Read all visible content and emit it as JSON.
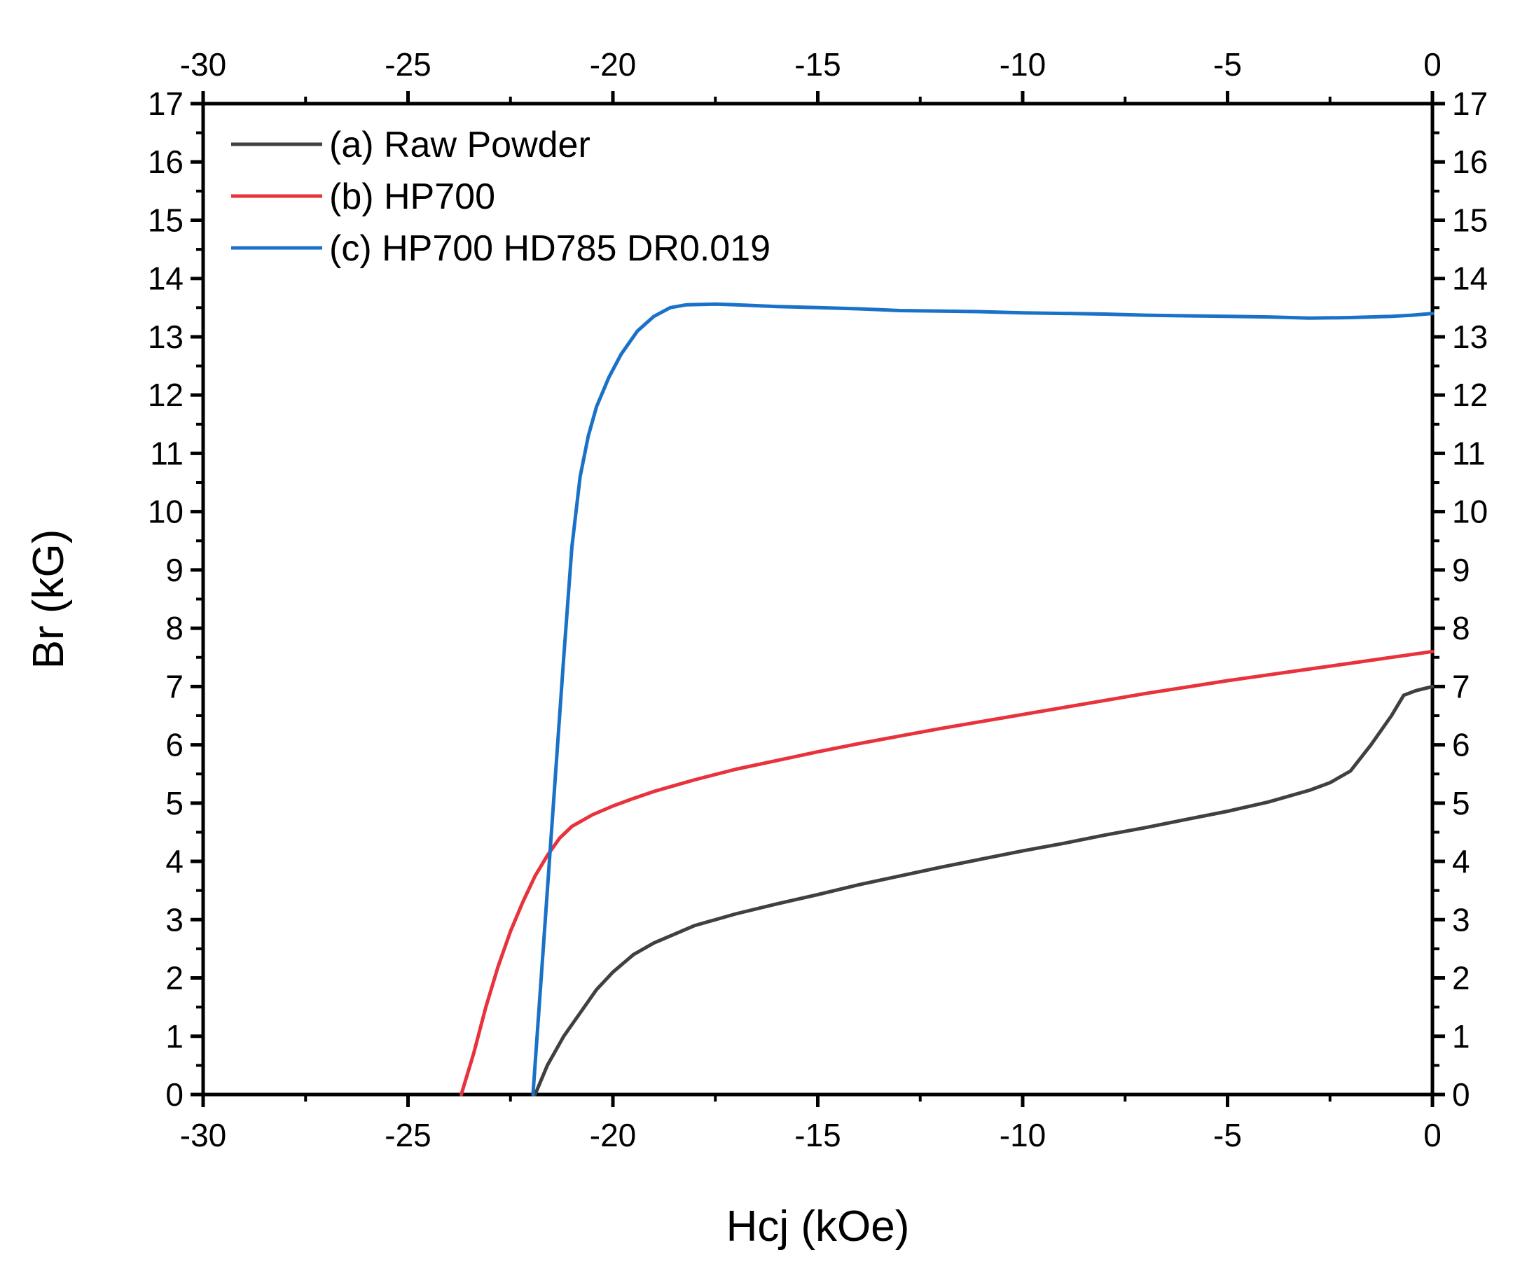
{
  "chart_data": {
    "type": "line",
    "title": "",
    "xlabel": "Hcj (kOe)",
    "ylabel": "Br (kG)",
    "xlim": [
      -30,
      0
    ],
    "ylim": [
      0,
      17
    ],
    "x_ticks": [
      -30,
      -25,
      -20,
      -15,
      -10,
      -5,
      0
    ],
    "y_ticks": [
      0,
      1,
      2,
      3,
      4,
      5,
      6,
      7,
      8,
      9,
      10,
      11,
      12,
      13,
      14,
      15,
      16,
      17
    ],
    "mirror_axes": true,
    "legend_position": "top-left",
    "series": [
      {
        "name": "(a) Raw Powder",
        "color": "#404040",
        "x": [
          -21.9,
          -21.6,
          -21.2,
          -20.8,
          -20.4,
          -20.0,
          -19.5,
          -19.0,
          -18.5,
          -18.0,
          -17.0,
          -16.0,
          -15.0,
          -14.0,
          -13.0,
          -12.0,
          -11.0,
          -10.0,
          -9.0,
          -8.0,
          -7.0,
          -6.0,
          -5.0,
          -4.0,
          -3.0,
          -2.5,
          -2.0,
          -1.5,
          -1.0,
          -0.7,
          -0.4,
          0.0
        ],
        "y": [
          0.0,
          0.5,
          1.0,
          1.4,
          1.8,
          2.1,
          2.4,
          2.6,
          2.75,
          2.9,
          3.1,
          3.27,
          3.43,
          3.6,
          3.75,
          3.9,
          4.04,
          4.18,
          4.31,
          4.45,
          4.58,
          4.72,
          4.86,
          5.02,
          5.22,
          5.35,
          5.55,
          6.0,
          6.5,
          6.85,
          6.93,
          7.0
        ]
      },
      {
        "name": "(b) HP700",
        "color": "#e8323c",
        "x": [
          -23.7,
          -23.4,
          -23.1,
          -22.8,
          -22.5,
          -22.2,
          -21.9,
          -21.6,
          -21.3,
          -21.0,
          -20.5,
          -20.0,
          -19.5,
          -19.0,
          -18.0,
          -17.0,
          -16.0,
          -15.0,
          -14.0,
          -13.0,
          -12.0,
          -11.0,
          -10.0,
          -9.0,
          -8.0,
          -7.0,
          -6.0,
          -5.0,
          -4.0,
          -3.0,
          -2.0,
          -1.0,
          0.0
        ],
        "y": [
          0.0,
          0.7,
          1.5,
          2.2,
          2.8,
          3.3,
          3.75,
          4.1,
          4.4,
          4.6,
          4.8,
          4.95,
          5.08,
          5.2,
          5.4,
          5.58,
          5.73,
          5.88,
          6.02,
          6.15,
          6.28,
          6.4,
          6.52,
          6.64,
          6.76,
          6.88,
          6.99,
          7.1,
          7.2,
          7.3,
          7.4,
          7.5,
          7.6
        ]
      },
      {
        "name": "(c) HP700 HD785 DR0.019",
        "color": "#1a72c8",
        "x": [
          -21.95,
          -21.8,
          -21.6,
          -21.4,
          -21.2,
          -21.0,
          -20.8,
          -20.6,
          -20.4,
          -20.1,
          -19.8,
          -19.4,
          -19.0,
          -18.6,
          -18.2,
          -17.5,
          -17.0,
          -16.0,
          -15.0,
          -14.0,
          -13.0,
          -12.0,
          -11.0,
          -10.0,
          -9.0,
          -8.0,
          -7.0,
          -6.0,
          -5.0,
          -4.0,
          -3.0,
          -2.0,
          -1.0,
          -0.5,
          0.0
        ],
        "y": [
          0.0,
          1.5,
          3.5,
          5.5,
          7.5,
          9.4,
          10.6,
          11.3,
          11.8,
          12.3,
          12.7,
          13.1,
          13.35,
          13.5,
          13.55,
          13.56,
          13.55,
          13.52,
          13.5,
          13.48,
          13.45,
          13.44,
          13.43,
          13.41,
          13.4,
          13.39,
          13.37,
          13.36,
          13.35,
          13.34,
          13.32,
          13.33,
          13.35,
          13.37,
          13.4
        ]
      }
    ]
  }
}
